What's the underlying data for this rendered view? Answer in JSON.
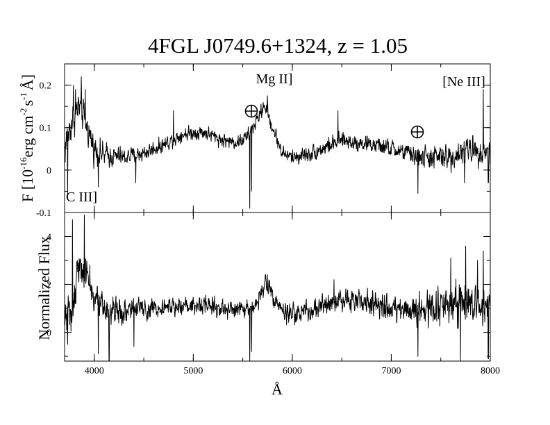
{
  "chart_data": [
    {
      "type": "line",
      "panel": "top",
      "title": "4FGL J0749.6+1324, z = 1.05",
      "xlabel": "",
      "ylabel_parts": {
        "main": "F [10",
        "exp1": "-16",
        "unit1": "erg cm",
        "exp2": "-2",
        "unit2": "s",
        "exp3": "-1",
        "unit3": "Å",
        "close": "]"
      },
      "xlim": [
        3700,
        8000
      ],
      "ylim": [
        -0.1,
        0.25
      ],
      "ytick_values": [
        -0.1,
        0,
        0.1,
        0.2
      ],
      "ytick_labels": [
        "-0.1",
        "0",
        "0.1",
        "0.2"
      ],
      "annotations": [
        {
          "text": "Mg II]",
          "x": 5680,
          "y": 0.21
        },
        {
          "text": "[Ne III]",
          "x": 7720,
          "y": 0.205
        },
        {
          "text": "C III]",
          "x": 3720,
          "y": -0.07
        }
      ],
      "telluric_symbols": [
        {
          "name": "earth-symbol",
          "x": 5590,
          "y": 0.137
        },
        {
          "name": "earth-symbol",
          "x": 7270,
          "y": 0.088
        }
      ],
      "anchors": [
        [
          3700,
          0.05
        ],
        [
          3780,
          0.12
        ],
        [
          3850,
          0.15
        ],
        [
          3930,
          0.1
        ],
        [
          4000,
          0.05
        ],
        [
          4100,
          0.035
        ],
        [
          4300,
          0.03
        ],
        [
          4500,
          0.04
        ],
        [
          4700,
          0.06
        ],
        [
          4900,
          0.085
        ],
        [
          5100,
          0.09
        ],
        [
          5300,
          0.07
        ],
        [
          5450,
          0.065
        ],
        [
          5550,
          0.08
        ],
        [
          5640,
          0.115
        ],
        [
          5720,
          0.155
        ],
        [
          5800,
          0.1
        ],
        [
          5900,
          0.04
        ],
        [
          6000,
          0.03
        ],
        [
          6200,
          0.04
        ],
        [
          6500,
          0.07
        ],
        [
          6800,
          0.06
        ],
        [
          7000,
          0.05
        ],
        [
          7300,
          0.03
        ],
        [
          7600,
          0.03
        ],
        [
          7800,
          0.05
        ],
        [
          8000,
          0.04
        ]
      ],
      "noise": [
        [
          3700,
          0.06
        ],
        [
          4000,
          0.04
        ],
        [
          4300,
          0.025
        ],
        [
          5000,
          0.02
        ],
        [
          6000,
          0.022
        ],
        [
          7000,
          0.025
        ],
        [
          7500,
          0.035
        ],
        [
          8000,
          0.04
        ]
      ],
      "spikes": [
        [
          3730,
          -0.06
        ],
        [
          3790,
          0.2
        ],
        [
          3810,
          0.19
        ],
        [
          3870,
          0.22
        ],
        [
          3910,
          0.19
        ],
        [
          4040,
          -0.04
        ],
        [
          4420,
          -0.03
        ],
        [
          4800,
          0.14
        ],
        [
          5570,
          -0.09
        ],
        [
          5590,
          -0.05
        ],
        [
          5750,
          0.175
        ],
        [
          6460,
          0.14
        ],
        [
          7270,
          -0.055
        ],
        [
          7740,
          -0.03
        ],
        [
          7900,
          0.06
        ],
        [
          7930,
          0.19
        ],
        [
          7980,
          -0.03
        ]
      ]
    },
    {
      "type": "line",
      "panel": "bottom",
      "xlabel": "Å",
      "ylabel": "Normalized Flux",
      "xlim": [
        3700,
        8000
      ],
      "ylim": [
        -1.2,
        5.0
      ],
      "xtick_values": [
        4000,
        5000,
        6000,
        7000,
        8000
      ],
      "xtick_labels": [
        "4000",
        "5000",
        "6000",
        "7000",
        "8000"
      ],
      "ytick_values": [
        0,
        2,
        4
      ],
      "ytick_labels": [
        "0",
        "2",
        "4"
      ],
      "anchors": [
        [
          3700,
          0.6
        ],
        [
          3780,
          1.2
        ],
        [
          3850,
          2.8
        ],
        [
          3930,
          2.5
        ],
        [
          4000,
          1.2
        ],
        [
          4100,
          1.0
        ],
        [
          4300,
          0.9
        ],
        [
          4500,
          1.0
        ],
        [
          4700,
          1.1
        ],
        [
          4900,
          1.1
        ],
        [
          5100,
          1.2
        ],
        [
          5300,
          1.0
        ],
        [
          5500,
          0.9
        ],
        [
          5640,
          1.2
        ],
        [
          5730,
          2.2
        ],
        [
          5820,
          1.4
        ],
        [
          5900,
          0.8
        ],
        [
          6000,
          0.7
        ],
        [
          6200,
          0.9
        ],
        [
          6500,
          1.4
        ],
        [
          6800,
          1.2
        ],
        [
          7000,
          1.0
        ],
        [
          7300,
          0.9
        ],
        [
          7600,
          1.1
        ],
        [
          7800,
          1.3
        ],
        [
          8000,
          1.1
        ]
      ],
      "noise": [
        [
          3700,
          1.2
        ],
        [
          4000,
          0.9
        ],
        [
          4300,
          0.6
        ],
        [
          5000,
          0.45
        ],
        [
          6000,
          0.5
        ],
        [
          7000,
          0.7
        ],
        [
          7500,
          1.0
        ],
        [
          8000,
          1.2
        ]
      ],
      "spikes": [
        [
          3730,
          -0.5
        ],
        [
          3780,
          4.7
        ],
        [
          3830,
          3.0
        ],
        [
          3900,
          4.9
        ],
        [
          4040,
          -0.9
        ],
        [
          4150,
          -1.2
        ],
        [
          4400,
          -0.6
        ],
        [
          5570,
          -1.2
        ],
        [
          5590,
          -0.8
        ],
        [
          5750,
          2.4
        ],
        [
          6420,
          2.2
        ],
        [
          7270,
          -1.0
        ],
        [
          7600,
          3.1
        ],
        [
          7700,
          -1.2
        ],
        [
          7750,
          3.6
        ],
        [
          7870,
          3.0
        ],
        [
          7930,
          3.4
        ],
        [
          7980,
          -1.1
        ]
      ]
    }
  ]
}
